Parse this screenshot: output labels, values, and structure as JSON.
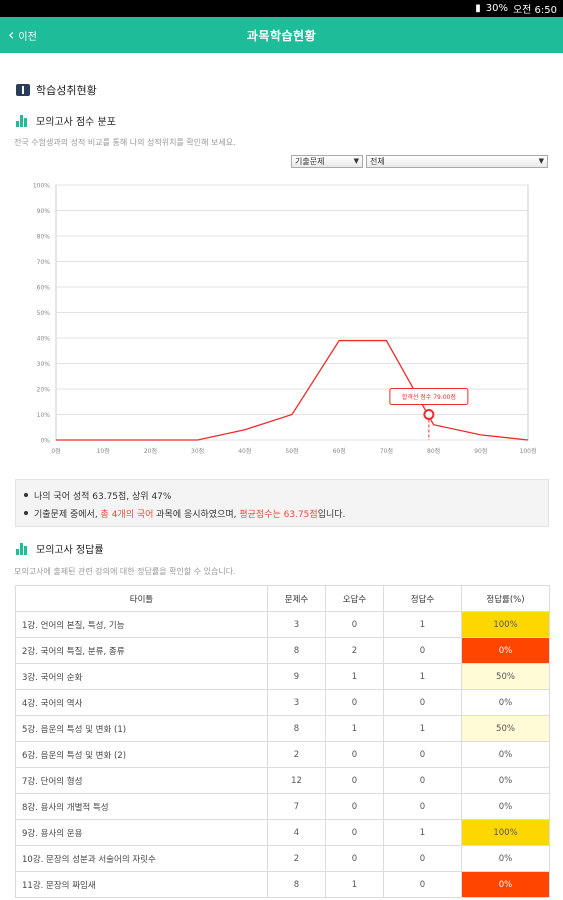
{
  "status": {
    "battery": "30%",
    "clock": "오전 6:50"
  },
  "header": {
    "back_label": "이전",
    "title": "과목학습현황"
  },
  "section": {
    "title": "학습성취현황"
  },
  "distribution": {
    "title": "모의고사 점수 분포",
    "desc": "전국 수험생과의 성적 비교를 통해 나의 성적위치를 확인해 보세요.",
    "select1": "기출문제",
    "select2": "전체"
  },
  "chart_data": {
    "type": "line",
    "x": [
      0,
      10,
      20,
      30,
      40,
      50,
      60,
      70,
      80,
      90,
      100
    ],
    "xticks": [
      "0점",
      "10점",
      "20점",
      "30점",
      "40점",
      "50점",
      "60점",
      "70점",
      "80점",
      "90점",
      "100점"
    ],
    "yticks": [
      "0%",
      "10%",
      "20%",
      "30%",
      "40%",
      "50%",
      "60%",
      "70%",
      "80%",
      "90%",
      "100%"
    ],
    "ylim": [
      0,
      100
    ],
    "series": [
      {
        "values": [
          0,
          0,
          0,
          0,
          4,
          10,
          39,
          39,
          6,
          2,
          0
        ]
      }
    ],
    "marker": {
      "x": 79,
      "y": 10,
      "label": "합격선 점수 79.00점"
    },
    "grid": true,
    "color": "#ee2b2b"
  },
  "info": {
    "line1": "나의 국어 성적 63.75점, 상위 47%",
    "line2_a": "기출문제 중에서, ",
    "line2_b": "총 4개의 국어",
    "line2_c": " 과목에 응시하였으며, ",
    "line2_d": "평균점수는 63.75점",
    "line2_e": "입니다."
  },
  "rate": {
    "title": "모의고사 정답률",
    "desc": "모의고사에 출제된 관련 강의에 대한 정답률을 확인할 수 있습니다.",
    "headers": [
      "타이틀",
      "문제수",
      "오답수",
      "정답수",
      "정답률(%)"
    ],
    "rows": [
      [
        "1강. 언어의 본질, 특성, 기능",
        "3",
        "0",
        "1",
        "100%"
      ],
      [
        "2강. 국어의 특질, 분류, 종류",
        "8",
        "2",
        "0",
        "0%"
      ],
      [
        "3강. 국어의 순화",
        "9",
        "1",
        "1",
        "50%"
      ],
      [
        "4강. 국어의 역사",
        "3",
        "0",
        "0",
        "0%"
      ],
      [
        "5강. 음운의 특성 및 변화 (1)",
        "8",
        "1",
        "1",
        "50%"
      ],
      [
        "6강. 음운의 특성 및 변화 (2)",
        "2",
        "0",
        "0",
        "0%"
      ],
      [
        "7강. 단어의 형성",
        "12",
        "0",
        "0",
        "0%"
      ],
      [
        "8강. 용사의 개별적 특성",
        "7",
        "0",
        "0",
        "0%"
      ],
      [
        "9강. 용사의 운용",
        "4",
        "0",
        "1",
        "100%"
      ],
      [
        "10강. 문장의 성분과 서술어의 자릿수",
        "2",
        "0",
        "0",
        "0%"
      ],
      [
        "11강. 문장의 짜임새",
        "8",
        "1",
        "0",
        "0%"
      ]
    ],
    "highlight": [
      "100",
      "0",
      "50",
      "",
      "50",
      "",
      "",
      "",
      "100",
      "",
      "0"
    ],
    "colors": {
      "rate_100": "#ffd700",
      "rate_0": "#ff4500",
      "rate_50": "#fffbd6"
    }
  }
}
